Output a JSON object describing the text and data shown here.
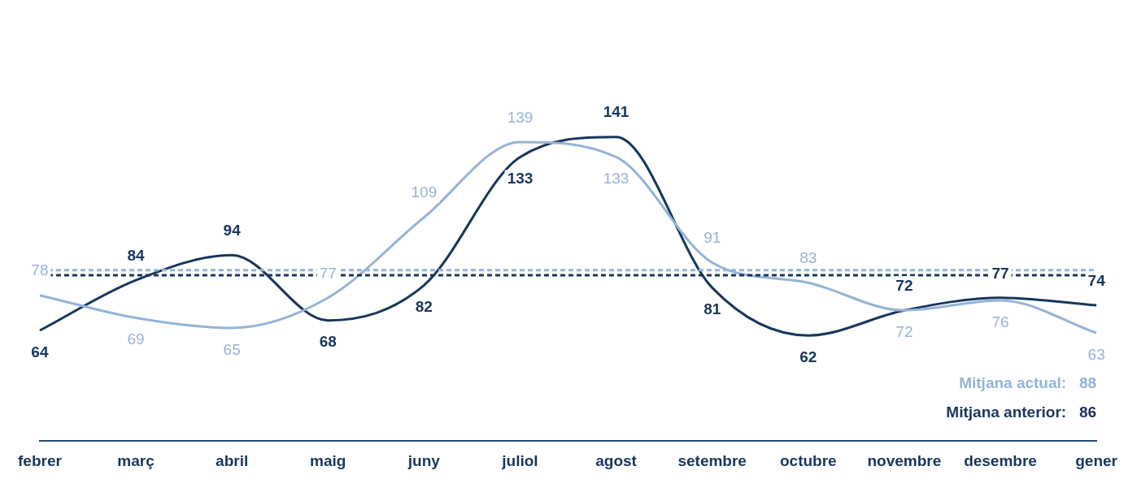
{
  "chart_data": {
    "type": "line",
    "categories": [
      "febrer",
      "març",
      "abril",
      "maig",
      "juny",
      "juliol",
      "agost",
      "setembre",
      "octubre",
      "novembre",
      "desembre",
      "gener"
    ],
    "series": [
      {
        "color": "#95b3d7",
        "values": [
          78,
          69,
          65,
          77,
          109,
          139,
          133,
          91,
          83,
          72,
          76,
          63
        ]
      },
      {
        "color": "#17365d",
        "values": [
          64,
          84,
          94,
          68,
          82,
          133,
          141,
          81,
          62,
          72,
          77,
          74
        ]
      }
    ],
    "data_labels": true,
    "ref_lines": [
      {
        "axis": "y",
        "value": 88,
        "label": "Mitjana actual:   88",
        "color": "#95b3d7",
        "line_style": "dashed"
      },
      {
        "axis": "y",
        "value": 86,
        "label": "Mitjana anterior:   86",
        "color": "#17365d",
        "line_style": "dashed"
      }
    ],
    "grid": false,
    "legend": false,
    "marker": "none",
    "line_style": "solid"
  }
}
